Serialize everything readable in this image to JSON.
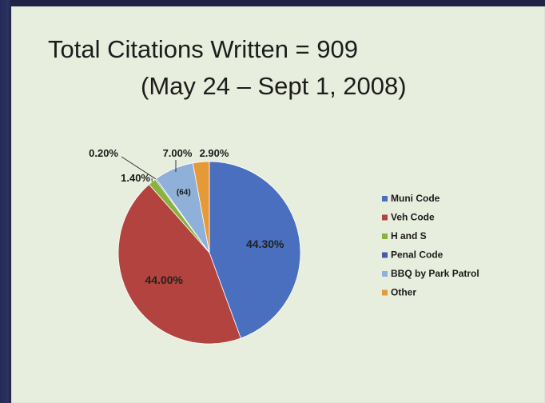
{
  "slide": {
    "title_line1": "Total Citations Written = 909",
    "title_line2": "(May 24 – Sept 1, 2008)"
  },
  "chart_data": {
    "type": "pie",
    "title": "Total Citations Written = 909",
    "subtitle": "(May 24 – Sept 1, 2008)",
    "legend_placement": "right",
    "slices": [
      {
        "name": "Muni Code",
        "value": 44.3,
        "label": "44.30%",
        "color": "#4a6fbf"
      },
      {
        "name": "Veh Code",
        "value": 44.0,
        "label": "44.00%",
        "color": "#b2433f"
      },
      {
        "name": "H and S",
        "value": 1.4,
        "label": "1.40%",
        "color": "#8ab23f"
      },
      {
        "name": "Penal Code",
        "value": 0.2,
        "label": "0.20%",
        "color": "#4a5aa8"
      },
      {
        "name": "BBQ by Park Patrol",
        "value": 7.0,
        "label": "7.00%",
        "color": "#8fb0d8"
      },
      {
        "name": "Other",
        "value": 2.9,
        "label": "2.90%",
        "color": "#e59a3a"
      }
    ],
    "annotations": [
      {
        "text": "(64)",
        "slice": "BBQ by Park Patrol"
      }
    ]
  }
}
